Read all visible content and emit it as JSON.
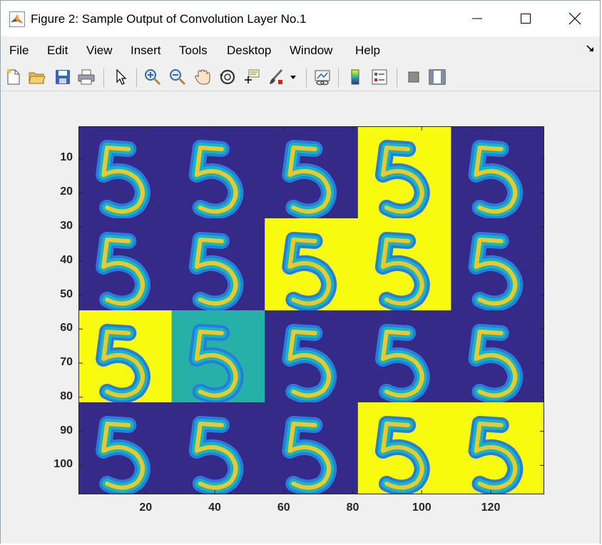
{
  "window": {
    "title": "Figure 2: Sample Output of Convolution Layer No.1"
  },
  "menu": {
    "items": [
      {
        "label": "File"
      },
      {
        "label": "Edit"
      },
      {
        "label": "View"
      },
      {
        "label": "Insert"
      },
      {
        "label": "Tools"
      },
      {
        "label": "Desktop"
      },
      {
        "label": "Window"
      },
      {
        "label": "Help"
      }
    ]
  },
  "toolbar": {
    "icons": [
      "new-figure-icon",
      "open-file-icon",
      "save-icon",
      "print-icon",
      "select-arrow-icon",
      "zoom-in-icon",
      "zoom-out-icon",
      "pan-hand-icon",
      "rotate-3d-icon",
      "data-cursor-icon",
      "brush-icon",
      "brush-dropdown-icon",
      "link-plot-icon",
      "colorbar-icon",
      "legend-icon",
      "hide-plot-tools-icon",
      "show-plot-tools-icon"
    ]
  },
  "chart_data": {
    "type": "heatmap",
    "title": "",
    "xlabel": "",
    "ylabel": "",
    "xlim": [
      0.5,
      135.5
    ],
    "ylim": [
      0.5,
      108.5
    ],
    "y_reversed": true,
    "grid": false,
    "x_ticks": [
      20,
      40,
      60,
      80,
      100,
      120
    ],
    "y_ticks": [
      10,
      20,
      30,
      40,
      50,
      60,
      70,
      80,
      90,
      100
    ],
    "grid_layout": {
      "rows": 4,
      "cols": 5
    },
    "tile_backgrounds": [
      [
        "#352a87",
        "#352a87",
        "#352a87",
        "#f9fb0e",
        "#352a87"
      ],
      [
        "#352a87",
        "#352a87",
        "#f9fb0e",
        "#f9fb0e",
        "#352a87"
      ],
      [
        "#f9fb0e",
        "#25b0a8",
        "#352a87",
        "#352a87",
        "#352a87"
      ],
      [
        "#352a87",
        "#352a87",
        "#352a87",
        "#f9fb0e",
        "#f9fb0e"
      ]
    ],
    "tile_content": "digit-5",
    "colormap": "parula"
  }
}
